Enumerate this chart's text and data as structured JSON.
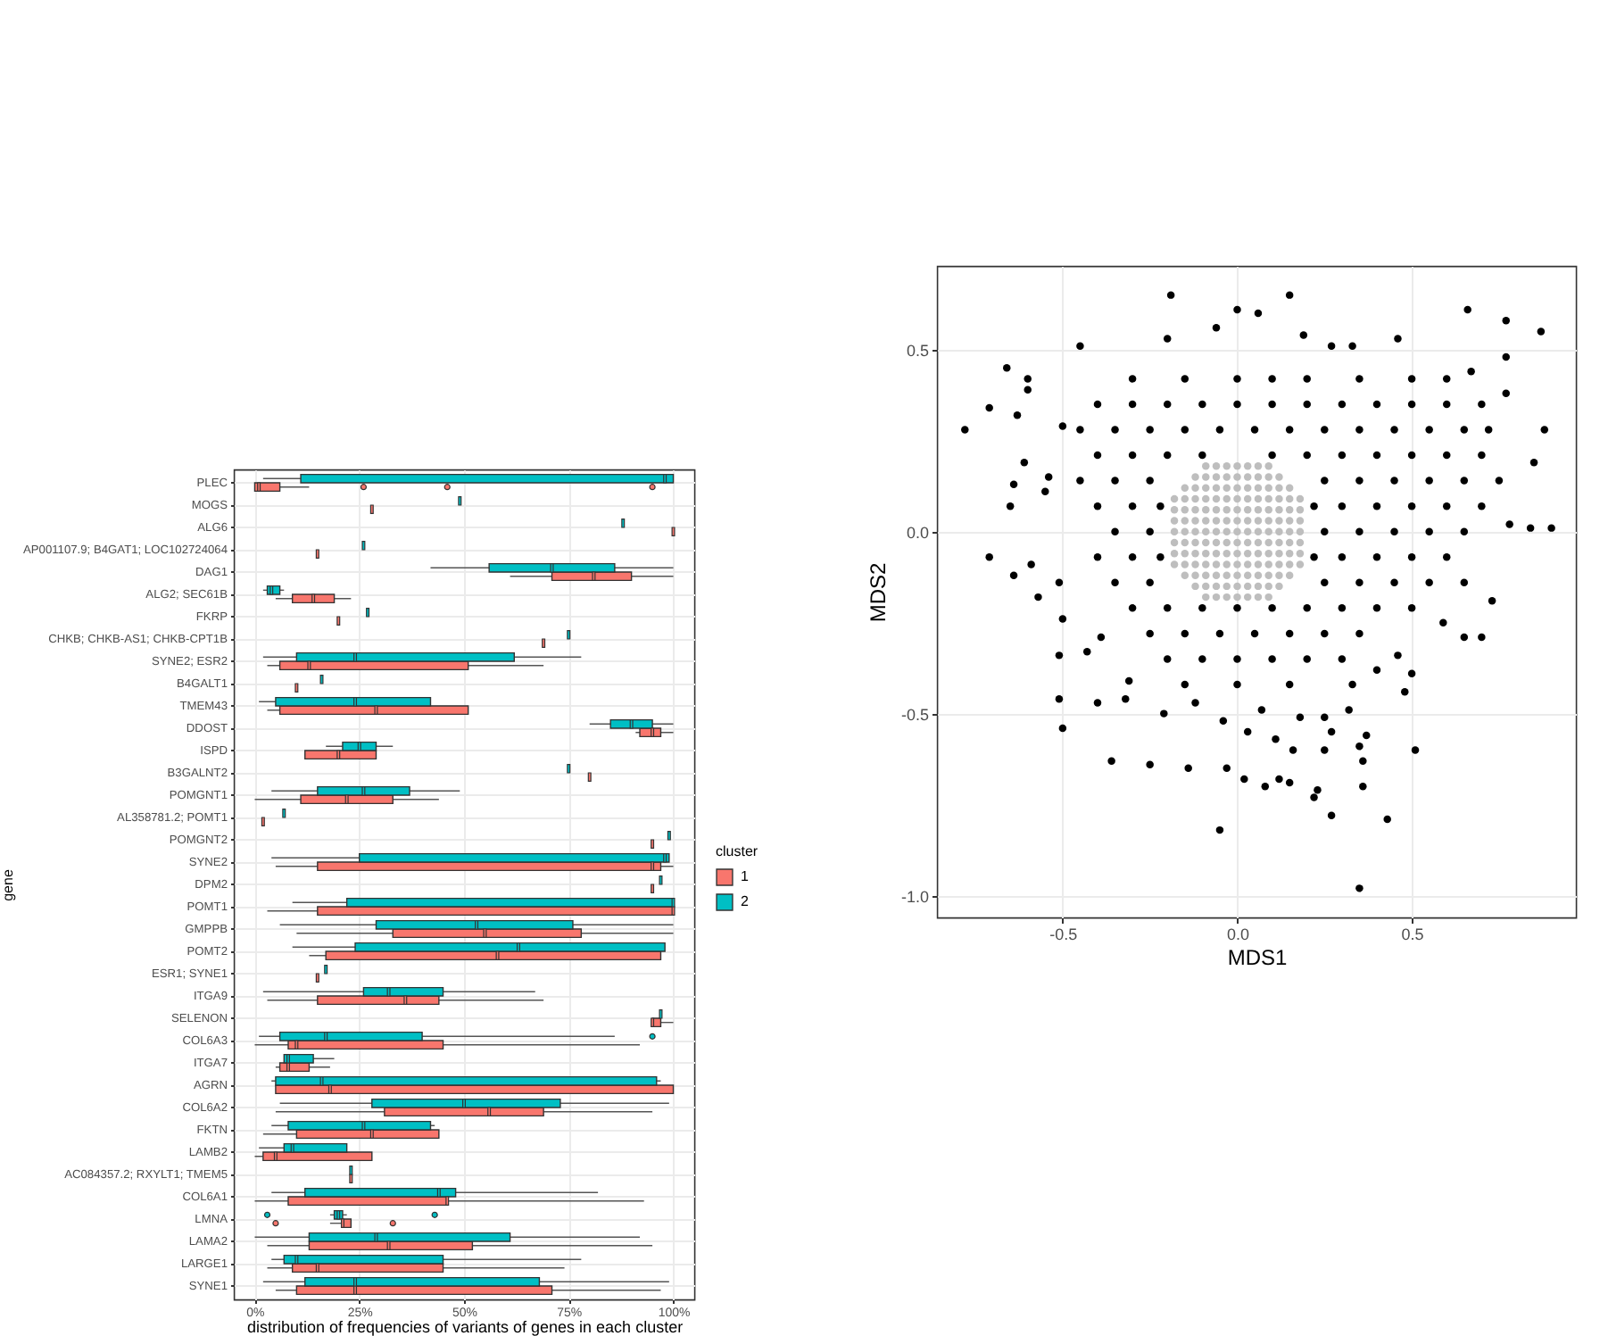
{
  "chart_data": [
    {
      "type": "box",
      "orientation": "horizontal",
      "xlabel": "distribution of frequencies of variants of genes in each cluster",
      "ylabel": "gene",
      "legend_title": "cluster",
      "legend": "right",
      "grid": true,
      "xlim": [
        -5,
        105
      ],
      "xticks": [
        {
          "value": 0,
          "label": "0%"
        },
        {
          "value": 25,
          "label": "25%"
        },
        {
          "value": 50,
          "label": "50%"
        },
        {
          "value": 75,
          "label": "75%"
        },
        {
          "value": 100,
          "label": "100%"
        }
      ],
      "categories": [
        "PLEC",
        "MOGS",
        "ALG6",
        "AP001107.9; B4GAT1; LOC102724064",
        "DAG1",
        "ALG2; SEC61B",
        "FKRP",
        "CHKB; CHKB-AS1; CHKB-CPT1B",
        "SYNE2; ESR2",
        "B4GALT1",
        "TMEM43",
        "DDOST",
        "ISPD",
        "B3GALNT2",
        "POMGNT1",
        "AL358781.2; POMT1",
        "POMGNT2",
        "SYNE2",
        "DPM2",
        "POMT1",
        "GMPPB",
        "POMT2",
        "ESR1; SYNE1",
        "ITGA9",
        "SELENON",
        "COL6A3",
        "ITGA7",
        "AGRN",
        "COL6A2",
        "FKTN",
        "LAMB2",
        "AC084357.2; RXYLT1; TMEM5",
        "COL6A1",
        "LMNA",
        "LAMA2",
        "LARGE1",
        "SYNE1"
      ],
      "series": [
        {
          "name": "1",
          "color": "#f8766d",
          "boxes": [
            {
              "low": 0,
              "q1": 0,
              "median": 1,
              "q3": 6,
              "high": 13,
              "outliers": [
                26,
                46,
                95
              ]
            },
            {
              "low": 28,
              "q1": 28,
              "median": 28,
              "q3": 28,
              "high": 28
            },
            {
              "low": 100,
              "q1": 100,
              "median": 100,
              "q3": 100,
              "high": 100
            },
            {
              "low": 15,
              "q1": 15,
              "median": 15,
              "q3": 15,
              "high": 15
            },
            {
              "low": 61,
              "q1": 71,
              "median": 81,
              "q3": 90,
              "high": 100
            },
            {
              "low": 5,
              "q1": 9,
              "median": 14,
              "q3": 19,
              "high": 23
            },
            {
              "low": 20,
              "q1": 20,
              "median": 20,
              "q3": 20,
              "high": 20
            },
            {
              "low": 69,
              "q1": 69,
              "median": 69,
              "q3": 69,
              "high": 69
            },
            {
              "low": 3,
              "q1": 6,
              "median": 13,
              "q3": 51,
              "high": 69
            },
            {
              "low": 10,
              "q1": 10,
              "median": 10,
              "q3": 10,
              "high": 10
            },
            {
              "low": 3,
              "q1": 6,
              "median": 29,
              "q3": 51,
              "high": 51
            },
            {
              "low": 91,
              "q1": 92,
              "median": 95,
              "q3": 97,
              "high": 100
            },
            {
              "low": 12,
              "q1": 12,
              "median": 20,
              "q3": 29,
              "high": 29
            },
            {
              "low": 80,
              "q1": 80,
              "median": 80,
              "q3": 80,
              "high": 80
            },
            {
              "low": 0,
              "q1": 11,
              "median": 22,
              "q3": 33,
              "high": 44
            },
            {
              "low": 2,
              "q1": 2,
              "median": 2,
              "q3": 2,
              "high": 2
            },
            {
              "low": 95,
              "q1": 95,
              "median": 95,
              "q3": 95,
              "high": 95
            },
            {
              "low": 5,
              "q1": 15,
              "median": 95,
              "q3": 97,
              "high": 100
            },
            {
              "low": 95,
              "q1": 95,
              "median": 95,
              "q3": 95,
              "high": 95
            },
            {
              "low": 3,
              "q1": 15,
              "median": 100,
              "q3": 100,
              "high": 100
            },
            {
              "low": 10,
              "q1": 33,
              "median": 55,
              "q3": 78,
              "high": 100
            },
            {
              "low": 13,
              "q1": 17,
              "median": 58,
              "q3": 97,
              "high": 97
            },
            {
              "low": 15,
              "q1": 15,
              "median": 15,
              "q3": 15,
              "high": 15
            },
            {
              "low": 3,
              "q1": 15,
              "median": 36,
              "q3": 44,
              "high": 69
            },
            {
              "low": 95,
              "q1": 95,
              "median": 95,
              "q3": 97,
              "high": 100
            },
            {
              "low": 0,
              "q1": 8,
              "median": 10,
              "q3": 45,
              "high": 92
            },
            {
              "low": 5,
              "q1": 6,
              "median": 8,
              "q3": 13,
              "high": 18
            },
            {
              "low": 5,
              "q1": 5,
              "median": 18,
              "q3": 100,
              "high": 100
            },
            {
              "low": 5,
              "q1": 31,
              "median": 56,
              "q3": 69,
              "high": 95
            },
            {
              "low": 2,
              "q1": 10,
              "median": 28,
              "q3": 44,
              "high": 44
            },
            {
              "low": 0,
              "q1": 2,
              "median": 5,
              "q3": 28,
              "high": 28
            },
            {
              "low": 23,
              "q1": 23,
              "median": 23,
              "q3": 23,
              "high": 23
            },
            {
              "low": 0,
              "q1": 8,
              "median": 46,
              "q3": 46,
              "high": 93
            },
            {
              "low": 18,
              "q1": 21,
              "median": 21,
              "q3": 23,
              "high": 23,
              "outliers": [
                5,
                33
              ]
            },
            {
              "low": 3,
              "q1": 13,
              "median": 32,
              "q3": 52,
              "high": 95
            },
            {
              "low": 3,
              "q1": 9,
              "median": 15,
              "q3": 45,
              "high": 74
            },
            {
              "low": 5,
              "q1": 10,
              "median": 24,
              "q3": 71,
              "high": 97
            }
          ]
        },
        {
          "name": "2",
          "color": "#00bfc4",
          "boxes": [
            {
              "low": 2,
              "q1": 11,
              "median": 98,
              "q3": 100,
              "high": 100
            },
            {
              "low": 49,
              "q1": 49,
              "median": 49,
              "q3": 49,
              "high": 49
            },
            {
              "low": 88,
              "q1": 88,
              "median": 88,
              "q3": 88,
              "high": 88
            },
            {
              "low": 26,
              "q1": 26,
              "median": 26,
              "q3": 26,
              "high": 26
            },
            {
              "low": 42,
              "q1": 56,
              "median": 71,
              "q3": 86,
              "high": 100
            },
            {
              "low": 2,
              "q1": 3,
              "median": 4,
              "q3": 6,
              "high": 7
            },
            {
              "low": 27,
              "q1": 27,
              "median": 27,
              "q3": 27,
              "high": 27
            },
            {
              "low": 75,
              "q1": 75,
              "median": 75,
              "q3": 75,
              "high": 75
            },
            {
              "low": 2,
              "q1": 10,
              "median": 24,
              "q3": 62,
              "high": 78
            },
            {
              "low": 16,
              "q1": 16,
              "median": 16,
              "q3": 16,
              "high": 16
            },
            {
              "low": 1,
              "q1": 5,
              "median": 24,
              "q3": 42,
              "high": 42
            },
            {
              "low": 80,
              "q1": 85,
              "median": 90,
              "q3": 95,
              "high": 100
            },
            {
              "low": 17,
              "q1": 21,
              "median": 25,
              "q3": 29,
              "high": 33
            },
            {
              "low": 75,
              "q1": 75,
              "median": 75,
              "q3": 75,
              "high": 75
            },
            {
              "low": 4,
              "q1": 15,
              "median": 26,
              "q3": 37,
              "high": 49
            },
            {
              "low": 7,
              "q1": 7,
              "median": 7,
              "q3": 7,
              "high": 7
            },
            {
              "low": 99,
              "q1": 99,
              "median": 99,
              "q3": 99,
              "high": 99
            },
            {
              "low": 4,
              "q1": 25,
              "median": 98,
              "q3": 99,
              "high": 99
            },
            {
              "low": 97,
              "q1": 97,
              "median": 97,
              "q3": 97,
              "high": 97
            },
            {
              "low": 9,
              "q1": 22,
              "median": 100,
              "q3": 100,
              "high": 100
            },
            {
              "low": 6,
              "q1": 29,
              "median": 53,
              "q3": 76,
              "high": 100
            },
            {
              "low": 9,
              "q1": 24,
              "median": 63,
              "q3": 98,
              "high": 98
            },
            {
              "low": 17,
              "q1": 17,
              "median": 17,
              "q3": 17,
              "high": 17
            },
            {
              "low": 2,
              "q1": 26,
              "median": 32,
              "q3": 45,
              "high": 67
            },
            {
              "low": 97,
              "q1": 97,
              "median": 97,
              "q3": 97,
              "high": 97
            },
            {
              "low": 1,
              "q1": 6,
              "median": 17,
              "q3": 40,
              "high": 86,
              "outliers": [
                95
              ]
            },
            {
              "low": 7,
              "q1": 7,
              "median": 8,
              "q3": 14,
              "high": 19
            },
            {
              "low": 4,
              "q1": 5,
              "median": 16,
              "q3": 96,
              "high": 97
            },
            {
              "low": 6,
              "q1": 28,
              "median": 50,
              "q3": 73,
              "high": 99
            },
            {
              "low": 4,
              "q1": 8,
              "median": 26,
              "q3": 42,
              "high": 43
            },
            {
              "low": 1,
              "q1": 7,
              "median": 9,
              "q3": 22,
              "high": 22
            },
            {
              "low": 23,
              "q1": 23,
              "median": 23,
              "q3": 23,
              "high": 23
            },
            {
              "low": 4,
              "q1": 12,
              "median": 44,
              "q3": 48,
              "high": 82
            },
            {
              "low": 18,
              "q1": 19,
              "median": 20,
              "q3": 21,
              "high": 22,
              "outliers": [
                3,
                43
              ]
            },
            {
              "low": 0,
              "q1": 13,
              "median": 29,
              "q3": 61,
              "high": 92
            },
            {
              "low": 4,
              "q1": 7,
              "median": 10,
              "q3": 45,
              "high": 78
            },
            {
              "low": 2,
              "q1": 12,
              "median": 24,
              "q3": 68,
              "high": 99
            }
          ]
        }
      ]
    },
    {
      "type": "scatter",
      "xlabel": "MDS1",
      "ylabel": "MDS2",
      "grid": true,
      "marker": "circle",
      "xlim": [
        -0.86,
        0.97
      ],
      "ylim": [
        -1.06,
        0.73
      ],
      "xticks": [
        -0.5,
        {
          "value": 0,
          "label": "0.0"
        },
        0.5
      ],
      "yticks": [
        {
          "value": -1,
          "label": "-1.0"
        },
        -0.5,
        {
          "value": 0,
          "label": "0.0"
        },
        0.5
      ],
      "series": [
        {
          "color": "#000000",
          "x": [
            -0.78,
            -0.71,
            -0.66,
            -0.6,
            -0.6,
            -0.63,
            -0.61,
            -0.64,
            -0.65,
            -0.71,
            -0.64,
            -0.59,
            -0.57,
            -0.51,
            -0.55,
            -0.54,
            -0.5,
            -0.45,
            -0.19,
            0,
            0.06,
            0.15,
            -0.06,
            -0.2,
            0.19,
            0.27,
            0.33,
            0.46,
            0.66,
            0.77,
            0.87,
            0.88,
            0.85,
            0.78,
            0.84,
            0.9,
            0.77,
            0.77,
            0.67,
            -0.5,
            -0.51,
            -0.51,
            -0.5,
            -0.36,
            -0.4,
            -0.25,
            -0.14,
            -0.05,
            -0.03,
            0.02,
            0.08,
            0.12,
            0.15,
            0.22,
            0.23,
            0.27,
            0.35,
            0.36,
            0.36,
            0.35,
            0.37,
            0.43,
            0.51,
            0.48,
            0.5,
            0.65,
            0.7,
            0.59,
            0.73,
            -0.21,
            -0.12,
            -0.04,
            0.03,
            0.11,
            0.16,
            0.25,
            0.27,
            0.32,
            0.25,
            0.18,
            0.07,
            -0.31,
            -0.32,
            -0.43,
            -0.39,
            0.33,
            0.4,
            0.46,
            -0.3,
            -0.15,
            0,
            0.1,
            0.2,
            0.35,
            0.5,
            0.6,
            -0.4,
            -0.3,
            -0.2,
            -0.1,
            0,
            0.1,
            0.2,
            0.3,
            0.4,
            0.5,
            0.6,
            0.7,
            -0.45,
            -0.35,
            -0.25,
            -0.15,
            -0.05,
            0.05,
            0.15,
            0.25,
            0.35,
            0.45,
            0.55,
            0.65,
            0.72,
            -0.4,
            -0.3,
            -0.2,
            -0.1,
            0.1,
            0.2,
            0.3,
            0.4,
            0.5,
            0.6,
            0.7,
            -0.45,
            -0.35,
            -0.25,
            0.25,
            0.35,
            0.45,
            0.55,
            0.65,
            0.75,
            -0.4,
            -0.3,
            -0.22,
            0.22,
            0.3,
            0.4,
            0.5,
            0.6,
            0.7,
            -0.35,
            -0.25,
            0.25,
            0.35,
            0.45,
            0.55,
            0.65,
            -0.4,
            -0.3,
            -0.22,
            0.22,
            0.3,
            0.4,
            0.5,
            0.6,
            -0.35,
            -0.25,
            0.25,
            0.35,
            0.45,
            0.55,
            0.65,
            -0.3,
            -0.2,
            -0.1,
            0,
            0.1,
            0.2,
            0.3,
            0.4,
            0.5,
            -0.25,
            -0.15,
            -0.05,
            0.05,
            0.15,
            0.25,
            0.35,
            -0.2,
            -0.1,
            0,
            0.1,
            0.2,
            0.3,
            -0.15,
            0,
            0.15
          ],
          "values": [
            0.28,
            0.34,
            0.45,
            0.42,
            0.39,
            0.32,
            0.19,
            0.13,
            0.07,
            -0.07,
            -0.12,
            -0.09,
            -0.18,
            -0.14,
            0.11,
            0.15,
            0.29,
            0.51,
            0.65,
            0.61,
            0.6,
            0.65,
            0.56,
            0.53,
            0.54,
            0.51,
            0.51,
            0.53,
            0.61,
            0.58,
            0.55,
            0.28,
            0.19,
            0.02,
            0.01,
            0.01,
            0.38,
            0.48,
            0.44,
            -0.24,
            -0.34,
            -0.46,
            -0.54,
            -0.63,
            -0.47,
            -0.64,
            -0.65,
            -0.82,
            -0.65,
            -0.68,
            -0.7,
            -0.68,
            -0.69,
            -0.73,
            -0.71,
            -0.78,
            -0.98,
            -0.7,
            -0.63,
            -0.59,
            -0.56,
            -0.79,
            -0.6,
            -0.44,
            -0.39,
            -0.29,
            -0.29,
            -0.25,
            -0.19,
            -0.5,
            -0.47,
            -0.52,
            -0.55,
            -0.57,
            -0.6,
            -0.6,
            -0.55,
            -0.49,
            -0.51,
            -0.51,
            -0.49,
            -0.41,
            -0.46,
            -0.33,
            -0.29,
            -0.42,
            -0.38,
            -0.34,
            0.42,
            0.42,
            0.42,
            0.42,
            0.42,
            0.42,
            0.42,
            0.42,
            0.35,
            0.35,
            0.35,
            0.35,
            0.35,
            0.35,
            0.35,
            0.35,
            0.35,
            0.35,
            0.35,
            0.35,
            0.28,
            0.28,
            0.28,
            0.28,
            0.28,
            0.28,
            0.28,
            0.28,
            0.28,
            0.28,
            0.28,
            0.28,
            0.28,
            0.21,
            0.21,
            0.21,
            0.21,
            0.21,
            0.21,
            0.21,
            0.21,
            0.21,
            0.21,
            0.21,
            0.14,
            0.14,
            0.14,
            0.14,
            0.14,
            0.14,
            0.14,
            0.14,
            0.14,
            0.07,
            0.07,
            0.07,
            0.07,
            0.07,
            0.07,
            0.07,
            0.07,
            0.07,
            0,
            0,
            0,
            0,
            0,
            0,
            0,
            -0.07,
            -0.07,
            -0.07,
            -0.07,
            -0.07,
            -0.07,
            -0.07,
            -0.07,
            -0.14,
            -0.14,
            -0.14,
            -0.14,
            -0.14,
            -0.14,
            -0.14,
            -0.21,
            -0.21,
            -0.21,
            -0.21,
            -0.21,
            -0.21,
            -0.21,
            -0.21,
            -0.21,
            -0.28,
            -0.28,
            -0.28,
            -0.28,
            -0.28,
            -0.28,
            -0.28,
            -0.35,
            -0.35,
            -0.35,
            -0.35,
            -0.35,
            -0.35,
            -0.42,
            -0.42,
            -0.42
          ]
        },
        {
          "color": "#bebebe",
          "x": [
            -0.09,
            -0.06,
            -0.03,
            0,
            0.03,
            0.06,
            0.09,
            -0.12,
            -0.09,
            -0.06,
            -0.03,
            0,
            0.03,
            0.06,
            0.09,
            0.12,
            -0.15,
            -0.12,
            -0.09,
            -0.06,
            -0.03,
            0,
            0.03,
            0.06,
            0.09,
            0.12,
            0.15,
            -0.18,
            -0.15,
            -0.12,
            -0.09,
            -0.06,
            -0.03,
            0,
            0.03,
            0.06,
            0.09,
            0.12,
            0.15,
            0.18,
            -0.18,
            -0.15,
            -0.12,
            -0.09,
            -0.06,
            -0.03,
            0,
            0.03,
            0.06,
            0.09,
            0.12,
            0.15,
            0.18,
            -0.18,
            -0.15,
            -0.12,
            -0.09,
            -0.06,
            -0.03,
            0,
            0.03,
            0.06,
            0.09,
            0.12,
            0.15,
            0.18,
            -0.18,
            -0.15,
            -0.12,
            -0.09,
            -0.06,
            -0.03,
            0,
            0.03,
            0.06,
            0.09,
            0.12,
            0.15,
            0.18,
            -0.18,
            -0.15,
            -0.12,
            -0.09,
            -0.06,
            -0.03,
            0,
            0.03,
            0.06,
            0.09,
            0.12,
            0.15,
            0.18,
            -0.18,
            -0.15,
            -0.12,
            -0.09,
            -0.06,
            -0.03,
            0,
            0.03,
            0.06,
            0.09,
            0.12,
            0.15,
            0.18,
            -0.18,
            -0.15,
            -0.12,
            -0.09,
            -0.06,
            -0.03,
            0,
            0.03,
            0.06,
            0.09,
            0.12,
            0.15,
            0.18,
            -0.15,
            -0.12,
            -0.09,
            -0.06,
            -0.03,
            0,
            0.03,
            0.06,
            0.09,
            0.12,
            0.15,
            -0.12,
            -0.09,
            -0.06,
            -0.03,
            0,
            0.03,
            0.06,
            0.09,
            0.12,
            -0.09,
            -0.06,
            -0.03,
            0,
            0.03,
            0.06,
            0.09
          ],
          "values": [
            0.18,
            0.18,
            0.18,
            0.18,
            0.18,
            0.18,
            0.18,
            0.15,
            0.15,
            0.15,
            0.15,
            0.15,
            0.15,
            0.15,
            0.15,
            0.15,
            0.12,
            0.12,
            0.12,
            0.12,
            0.12,
            0.12,
            0.12,
            0.12,
            0.12,
            0.12,
            0.12,
            0.09,
            0.09,
            0.09,
            0.09,
            0.09,
            0.09,
            0.09,
            0.09,
            0.09,
            0.09,
            0.09,
            0.09,
            0.09,
            0.06,
            0.06,
            0.06,
            0.06,
            0.06,
            0.06,
            0.06,
            0.06,
            0.06,
            0.06,
            0.06,
            0.06,
            0.06,
            0.03,
            0.03,
            0.03,
            0.03,
            0.03,
            0.03,
            0.03,
            0.03,
            0.03,
            0.03,
            0.03,
            0.03,
            0.03,
            0,
            0,
            0,
            0,
            0,
            0,
            0,
            0,
            0,
            0,
            0,
            0,
            0,
            -0.03,
            -0.03,
            -0.03,
            -0.03,
            -0.03,
            -0.03,
            -0.03,
            -0.03,
            -0.03,
            -0.03,
            -0.03,
            -0.03,
            -0.03,
            -0.06,
            -0.06,
            -0.06,
            -0.06,
            -0.06,
            -0.06,
            -0.06,
            -0.06,
            -0.06,
            -0.06,
            -0.06,
            -0.06,
            -0.06,
            -0.09,
            -0.09,
            -0.09,
            -0.09,
            -0.09,
            -0.09,
            -0.09,
            -0.09,
            -0.09,
            -0.09,
            -0.09,
            -0.09,
            -0.09,
            -0.12,
            -0.12,
            -0.12,
            -0.12,
            -0.12,
            -0.12,
            -0.12,
            -0.12,
            -0.12,
            -0.12,
            -0.12,
            -0.15,
            -0.15,
            -0.15,
            -0.15,
            -0.15,
            -0.15,
            -0.15,
            -0.15,
            -0.15,
            -0.18,
            -0.18,
            -0.18,
            -0.18,
            -0.18,
            -0.18,
            -0.18
          ]
        }
      ]
    }
  ]
}
